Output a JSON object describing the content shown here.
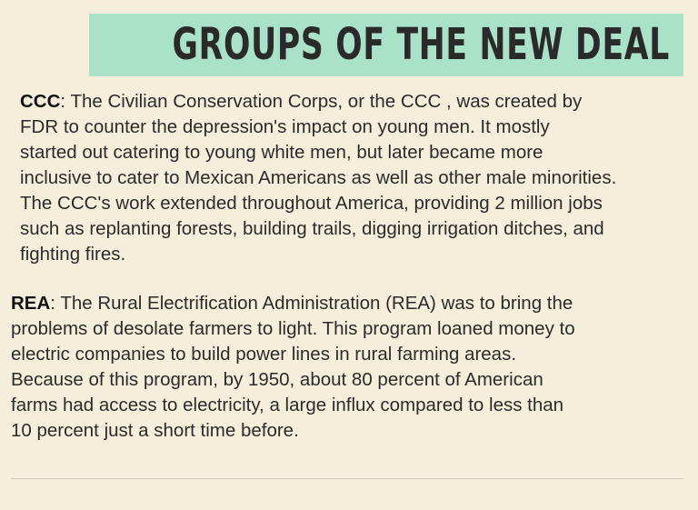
{
  "header": {
    "title": "GROUPS OF THE NEW DEAL"
  },
  "sections": [
    {
      "term": "CCC",
      "lines": [
        ": The Civilian Conservation Corps, or the CCC , was created by",
        "FDR to counter the depression's impact on young men. It mostly",
        "started out catering to young white men, but later became more",
        "inclusive to cater to Mexican Americans as well as other male minorities.",
        "The CCC's work extended throughout America, providing 2 million jobs",
        "such as replanting forests, building trails, digging irrigation ditches, and",
        "fighting fires."
      ]
    },
    {
      "term": "REA",
      "lines": [
        ": The Rural Electrification Administration (REA) was to bring the",
        "problems of desolate farmers to light. This program loaned money to",
        "electric companies to build power lines in rural farming areas.",
        "Because of this program, by 1950, about 80 percent of American",
        "farms had access to electricity, a large influx compared to less than",
        "10 percent just a short time before."
      ]
    }
  ]
}
